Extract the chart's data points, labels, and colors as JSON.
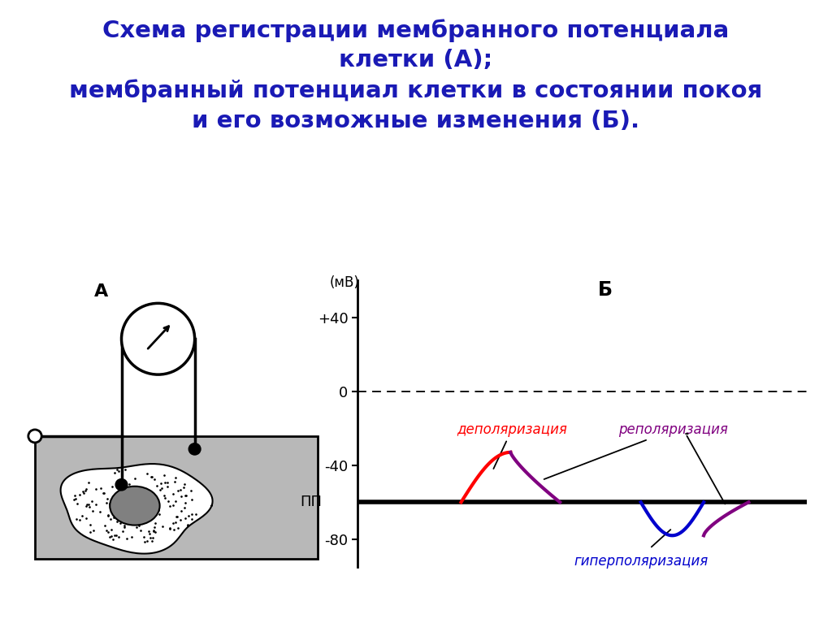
{
  "title_line1": "Схема регистрации мембранного потенциала",
  "title_line2": "клетки (А);",
  "title_line3": "мембранный потенциал клетки в состоянии покоя",
  "title_line4": "и его возможные изменения (Б).",
  "title_color": "#1a1ab5",
  "title_fontsize": 21,
  "label_A": "А",
  "label_B": "Б",
  "ylabel_text": "(мВ)",
  "pp_label": "ПП",
  "yticks": [
    "+40",
    "0",
    "-40",
    "-80"
  ],
  "ytick_values": [
    40,
    0,
    -40,
    -80
  ],
  "depol_label": "деполяризация",
  "depol_color": "#ff0000",
  "repol_label": "реполяризация",
  "repol_color": "#800080",
  "hyperpol_label": "гиперполяризация",
  "hyperpol_color": "#0000cd",
  "bg_color": "#ffffff",
  "cell_bg": "#b8b8b8",
  "nucleus_color": "#808080",
  "pp_value": -60,
  "dep_peak": -33,
  "hyp_depth": -78
}
